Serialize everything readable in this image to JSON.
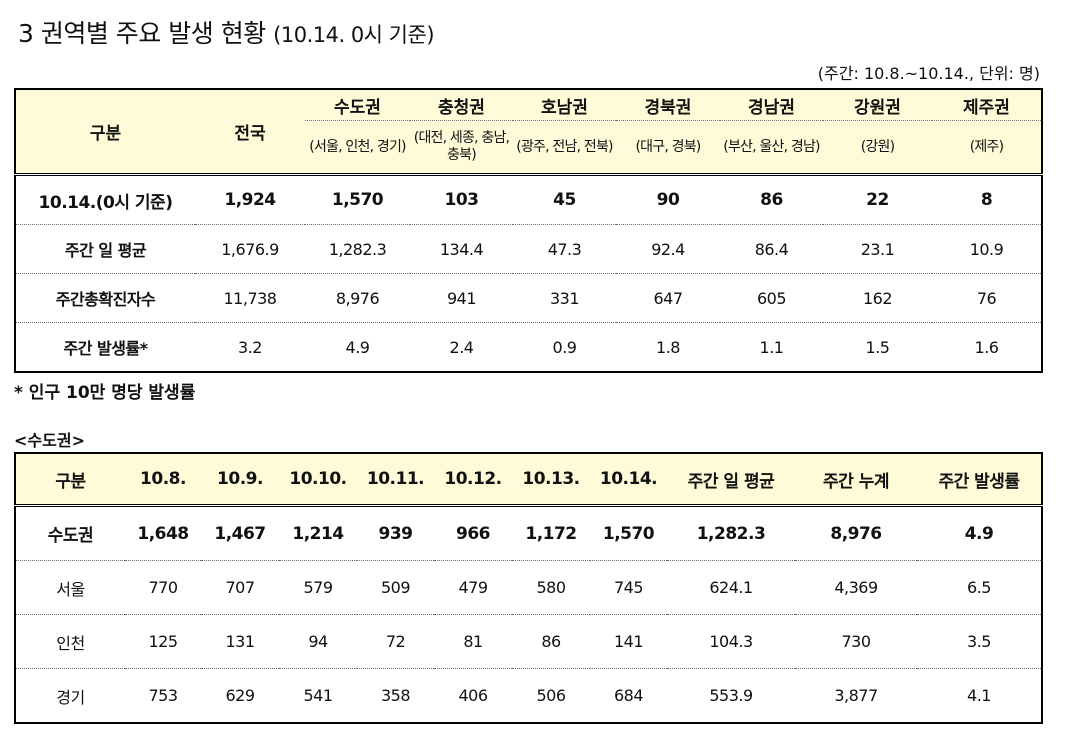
{
  "title": {
    "main": "3  권역별 주요 발생 현황",
    "sub": "(10.14. 0시 기준)"
  },
  "unit_note": "(주간: 10.8.~10.14., 단위: 명)",
  "regional_table": {
    "header_label": "구분",
    "header_national": "전국",
    "regions": [
      {
        "name": "수도권",
        "detail": "(서울, 인천, 경기)"
      },
      {
        "name": "충청권",
        "detail": "(대전, 세종, 충남, 충북)"
      },
      {
        "name": "호남권",
        "detail": "(광주, 전남, 전북)"
      },
      {
        "name": "경북권",
        "detail": "(대구, 경북)"
      },
      {
        "name": "경남권",
        "detail": "(부산, 울산, 경남)"
      },
      {
        "name": "강원권",
        "detail": "(강원)"
      },
      {
        "name": "제주권",
        "detail": "(제주)"
      }
    ],
    "rows": [
      {
        "label": "10.14.(0시 기준)",
        "values": [
          "1,924",
          "1,570",
          "103",
          "45",
          "90",
          "86",
          "22",
          "8"
        ]
      },
      {
        "label": "주간 일 평균",
        "values": [
          "1,676.9",
          "1,282.3",
          "134.4",
          "47.3",
          "92.4",
          "86.4",
          "23.1",
          "10.9"
        ]
      },
      {
        "label": "주간총확진자수",
        "values": [
          "11,738",
          "8,976",
          "941",
          "331",
          "647",
          "605",
          "162",
          "76"
        ]
      },
      {
        "label": "주간 발생률*",
        "values": [
          "3.2",
          "4.9",
          "2.4",
          "0.9",
          "1.8",
          "1.1",
          "1.5",
          "1.6"
        ]
      }
    ]
  },
  "footnote": "* 인구 10만 명당 발생률",
  "capital_section": {
    "title": "<수도권>",
    "headers": [
      "구분",
      "10.8.",
      "10.9.",
      "10.10.",
      "10.11.",
      "10.12.",
      "10.13.",
      "10.14.",
      "주간 일 평균",
      "주간 누계",
      "주간 발생률"
    ],
    "rows": [
      {
        "label": "수도권",
        "values": [
          "1,648",
          "1,467",
          "1,214",
          "939",
          "966",
          "1,172",
          "1,570",
          "1,282.3",
          "8,976",
          "4.9"
        ]
      },
      {
        "label": "서울",
        "values": [
          "770",
          "707",
          "579",
          "509",
          "479",
          "580",
          "745",
          "624.1",
          "4,369",
          "6.5"
        ]
      },
      {
        "label": "인천",
        "values": [
          "125",
          "131",
          "94",
          "72",
          "81",
          "86",
          "141",
          "104.3",
          "730",
          "3.5"
        ]
      },
      {
        "label": "경기",
        "values": [
          "753",
          "629",
          "541",
          "358",
          "406",
          "506",
          "684",
          "553.9",
          "3,877",
          "4.1"
        ]
      }
    ]
  }
}
